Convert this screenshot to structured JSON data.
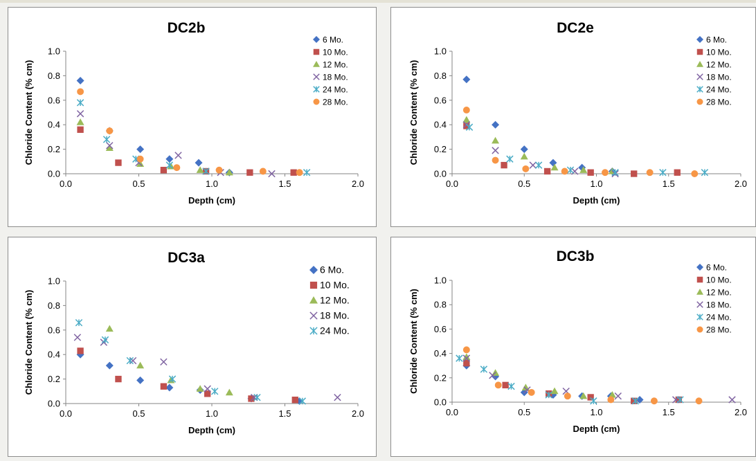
{
  "chart_data": [
    {
      "type": "scatter",
      "title": "DC2b",
      "xlabel": "Depth (cm)",
      "ylabel": "Chloride Content (% cm)",
      "xlim": [
        0,
        2
      ],
      "ylim": [
        0,
        1
      ],
      "x_ticks": [
        "0.0",
        "0.5",
        "1.0",
        "1.5",
        "2.0"
      ],
      "y_ticks": [
        "0.0",
        "0.2",
        "0.4",
        "0.6",
        "0.8",
        "1.0"
      ],
      "legend": "top-right",
      "series": [
        {
          "name": "6 Mo.",
          "marker": "diamond",
          "color": "#4472c4",
          "points": [
            [
              0.1,
              0.76
            ],
            [
              0.3,
              0.35
            ],
            [
              0.51,
              0.2
            ],
            [
              0.71,
              0.12
            ],
            [
              0.91,
              0.09
            ],
            [
              1.12,
              0.01
            ]
          ]
        },
        {
          "name": "10 Mo.",
          "marker": "square",
          "color": "#c0504d",
          "points": [
            [
              0.1,
              0.36
            ],
            [
              0.36,
              0.09
            ],
            [
              0.67,
              0.03
            ],
            [
              0.96,
              0.02
            ],
            [
              1.26,
              0.01
            ],
            [
              1.56,
              0.01
            ]
          ]
        },
        {
          "name": "12 Mo.",
          "marker": "triangle",
          "color": "#9bbb59",
          "points": [
            [
              0.1,
              0.42
            ],
            [
              0.3,
              0.21
            ],
            [
              0.51,
              0.08
            ],
            [
              0.72,
              0.06
            ],
            [
              0.92,
              0.03
            ],
            [
              1.12,
              0.01
            ]
          ]
        },
        {
          "name": "18 Mo.",
          "marker": "x",
          "color": "#8064a2",
          "points": [
            [
              0.1,
              0.49
            ],
            [
              0.3,
              0.23
            ],
            [
              0.5,
              0.09
            ],
            [
              0.77,
              0.15
            ],
            [
              1.06,
              0.01
            ],
            [
              1.41,
              0.0
            ]
          ]
        },
        {
          "name": "24 Mo.",
          "marker": "star",
          "color": "#4bacc6",
          "points": [
            [
              0.1,
              0.58
            ],
            [
              0.28,
              0.28
            ],
            [
              0.48,
              0.12
            ],
            [
              0.71,
              0.07
            ],
            [
              0.96,
              0.02
            ],
            [
              1.65,
              0.01
            ]
          ]
        },
        {
          "name": "28 Mo.",
          "marker": "circle",
          "color": "#f79646",
          "points": [
            [
              0.1,
              0.67
            ],
            [
              0.3,
              0.35
            ],
            [
              0.51,
              0.12
            ],
            [
              0.76,
              0.05
            ],
            [
              1.05,
              0.03
            ],
            [
              1.35,
              0.02
            ],
            [
              1.6,
              0.01
            ]
          ]
        }
      ]
    },
    {
      "type": "scatter",
      "title": "DC2e",
      "xlabel": "Depth (cm)",
      "ylabel": "Chloride Content (% cm)",
      "xlim": [
        0,
        2
      ],
      "ylim": [
        0,
        1
      ],
      "x_ticks": [
        "0.0",
        "0.5",
        "1.0",
        "1.5",
        "2.0"
      ],
      "y_ticks": [
        "0.0",
        "0.2",
        "0.4",
        "0.6",
        "0.8",
        "1.0"
      ],
      "legend": "top-right",
      "series": [
        {
          "name": "6 Mo.",
          "marker": "diamond",
          "color": "#4472c4",
          "points": [
            [
              0.1,
              0.77
            ],
            [
              0.3,
              0.4
            ],
            [
              0.5,
              0.2
            ],
            [
              0.7,
              0.09
            ],
            [
              0.9,
              0.05
            ],
            [
              1.11,
              0.02
            ]
          ]
        },
        {
          "name": "10 Mo.",
          "marker": "square",
          "color": "#c0504d",
          "points": [
            [
              0.1,
              0.39
            ],
            [
              0.36,
              0.07
            ],
            [
              0.66,
              0.02
            ],
            [
              0.96,
              0.01
            ],
            [
              1.26,
              0.0
            ],
            [
              1.56,
              0.01
            ]
          ]
        },
        {
          "name": "12 Mo.",
          "marker": "triangle",
          "color": "#9bbb59",
          "points": [
            [
              0.1,
              0.44
            ],
            [
              0.3,
              0.27
            ],
            [
              0.5,
              0.14
            ],
            [
              0.71,
              0.05
            ],
            [
              0.91,
              0.03
            ],
            [
              1.11,
              0.02
            ]
          ]
        },
        {
          "name": "18 Mo.",
          "marker": "x",
          "color": "#8064a2",
          "points": [
            [
              0.1,
              0.4
            ],
            [
              0.3,
              0.19
            ],
            [
              0.56,
              0.07
            ],
            [
              0.85,
              0.02
            ],
            [
              1.13,
              0.0
            ]
          ]
        },
        {
          "name": "24 Mo.",
          "marker": "star",
          "color": "#4bacc6",
          "points": [
            [
              0.12,
              0.38
            ],
            [
              0.4,
              0.12
            ],
            [
              0.6,
              0.07
            ],
            [
              0.82,
              0.03
            ],
            [
              1.13,
              0.01
            ],
            [
              1.46,
              0.01
            ],
            [
              1.75,
              0.01
            ]
          ]
        },
        {
          "name": "28 Mo.",
          "marker": "circle",
          "color": "#f79646",
          "points": [
            [
              0.1,
              0.52
            ],
            [
              0.3,
              0.11
            ],
            [
              0.51,
              0.04
            ],
            [
              0.78,
              0.02
            ],
            [
              1.06,
              0.01
            ],
            [
              1.37,
              0.01
            ],
            [
              1.68,
              0.0
            ]
          ]
        }
      ]
    },
    {
      "type": "scatter",
      "title": "DC3a",
      "xlabel": "Depth (cm)",
      "ylabel": "Chloride Content (% cm)",
      "xlim": [
        0,
        2
      ],
      "ylim": [
        0,
        1
      ],
      "x_ticks": [
        "0.0",
        "0.5",
        "1.0",
        "1.5",
        "2.0"
      ],
      "y_ticks": [
        "0.0",
        "0.2",
        "0.4",
        "0.6",
        "0.8",
        "1.0"
      ],
      "legend": "top-right",
      "series": [
        {
          "name": "6 Mo.",
          "marker": "diamond",
          "color": "#4472c4",
          "points": [
            [
              0.1,
              0.4
            ],
            [
              0.3,
              0.31
            ],
            [
              0.51,
              0.19
            ],
            [
              0.71,
              0.13
            ],
            [
              0.92,
              0.11
            ],
            [
              1.27,
              0.04
            ],
            [
              1.6,
              0.02
            ]
          ]
        },
        {
          "name": "10 Mo.",
          "marker": "square",
          "color": "#c0504d",
          "points": [
            [
              0.1,
              0.43
            ],
            [
              0.36,
              0.2
            ],
            [
              0.67,
              0.14
            ],
            [
              0.97,
              0.08
            ],
            [
              1.27,
              0.04
            ],
            [
              1.57,
              0.03
            ]
          ]
        },
        {
          "name": "12 Mo.",
          "marker": "triangle",
          "color": "#9bbb59",
          "points": [
            [
              0.3,
              0.61
            ],
            [
              0.51,
              0.31
            ],
            [
              0.72,
              0.19
            ],
            [
              0.92,
              0.12
            ],
            [
              1.12,
              0.09
            ]
          ]
        },
        {
          "name": "18 Mo.",
          "marker": "x",
          "color": "#8064a2",
          "points": [
            [
              0.08,
              0.54
            ],
            [
              0.26,
              0.5
            ],
            [
              0.46,
              0.35
            ],
            [
              0.67,
              0.34
            ],
            [
              0.97,
              0.12
            ],
            [
              1.29,
              0.05
            ],
            [
              1.86,
              0.05
            ]
          ]
        },
        {
          "name": "24 Mo.",
          "marker": "star",
          "color": "#4bacc6",
          "points": [
            [
              0.09,
              0.66
            ],
            [
              0.27,
              0.52
            ],
            [
              0.44,
              0.35
            ],
            [
              0.73,
              0.2
            ],
            [
              1.02,
              0.1
            ],
            [
              1.31,
              0.05
            ],
            [
              1.62,
              0.02
            ]
          ]
        }
      ]
    },
    {
      "type": "scatter",
      "title": "DC3b",
      "xlabel": "Depth (cm)",
      "ylabel": "Chloride Content (% cm)",
      "xlim": [
        0,
        2
      ],
      "ylim": [
        0,
        1
      ],
      "x_ticks": [
        "0.0",
        "0.5",
        "1.0",
        "1.5",
        "2.0"
      ],
      "y_ticks": [
        "0.0",
        "0.2",
        "0.4",
        "0.6",
        "0.8",
        "1.0"
      ],
      "legend": "top-right",
      "series": [
        {
          "name": "6 Mo.",
          "marker": "diamond",
          "color": "#4472c4",
          "points": [
            [
              0.1,
              0.3
            ],
            [
              0.3,
              0.21
            ],
            [
              0.5,
              0.08
            ],
            [
              0.7,
              0.06
            ],
            [
              0.9,
              0.05
            ],
            [
              1.1,
              0.05
            ],
            [
              1.3,
              0.02
            ]
          ]
        },
        {
          "name": "10 Mo.",
          "marker": "square",
          "color": "#c0504d",
          "points": [
            [
              0.1,
              0.32
            ],
            [
              0.37,
              0.14
            ],
            [
              0.67,
              0.07
            ],
            [
              0.96,
              0.04
            ],
            [
              1.26,
              0.01
            ],
            [
              1.57,
              0.02
            ]
          ]
        },
        {
          "name": "12 Mo.",
          "marker": "triangle",
          "color": "#9bbb59",
          "points": [
            [
              0.1,
              0.37
            ],
            [
              0.3,
              0.24
            ],
            [
              0.51,
              0.12
            ],
            [
              0.71,
              0.09
            ],
            [
              0.91,
              0.05
            ],
            [
              1.11,
              0.06
            ]
          ]
        },
        {
          "name": "18 Mo.",
          "marker": "x",
          "color": "#8064a2",
          "points": [
            [
              0.1,
              0.36
            ],
            [
              0.28,
              0.22
            ],
            [
              0.52,
              0.1
            ],
            [
              0.79,
              0.09
            ],
            [
              1.15,
              0.05
            ],
            [
              1.55,
              0.02
            ],
            [
              1.94,
              0.02
            ]
          ]
        },
        {
          "name": "24 Mo.",
          "marker": "star",
          "color": "#4bacc6",
          "points": [
            [
              0.05,
              0.36
            ],
            [
              0.22,
              0.27
            ],
            [
              0.41,
              0.13
            ],
            [
              0.67,
              0.06
            ],
            [
              0.98,
              0.01
            ],
            [
              1.27,
              0.01
            ],
            [
              1.58,
              0.02
            ]
          ]
        },
        {
          "name": "28 Mo.",
          "marker": "circle",
          "color": "#f79646",
          "points": [
            [
              0.1,
              0.43
            ],
            [
              0.32,
              0.14
            ],
            [
              0.55,
              0.08
            ],
            [
              0.8,
              0.05
            ],
            [
              1.1,
              0.02
            ],
            [
              1.4,
              0.01
            ],
            [
              1.71,
              0.01
            ]
          ]
        }
      ]
    }
  ]
}
